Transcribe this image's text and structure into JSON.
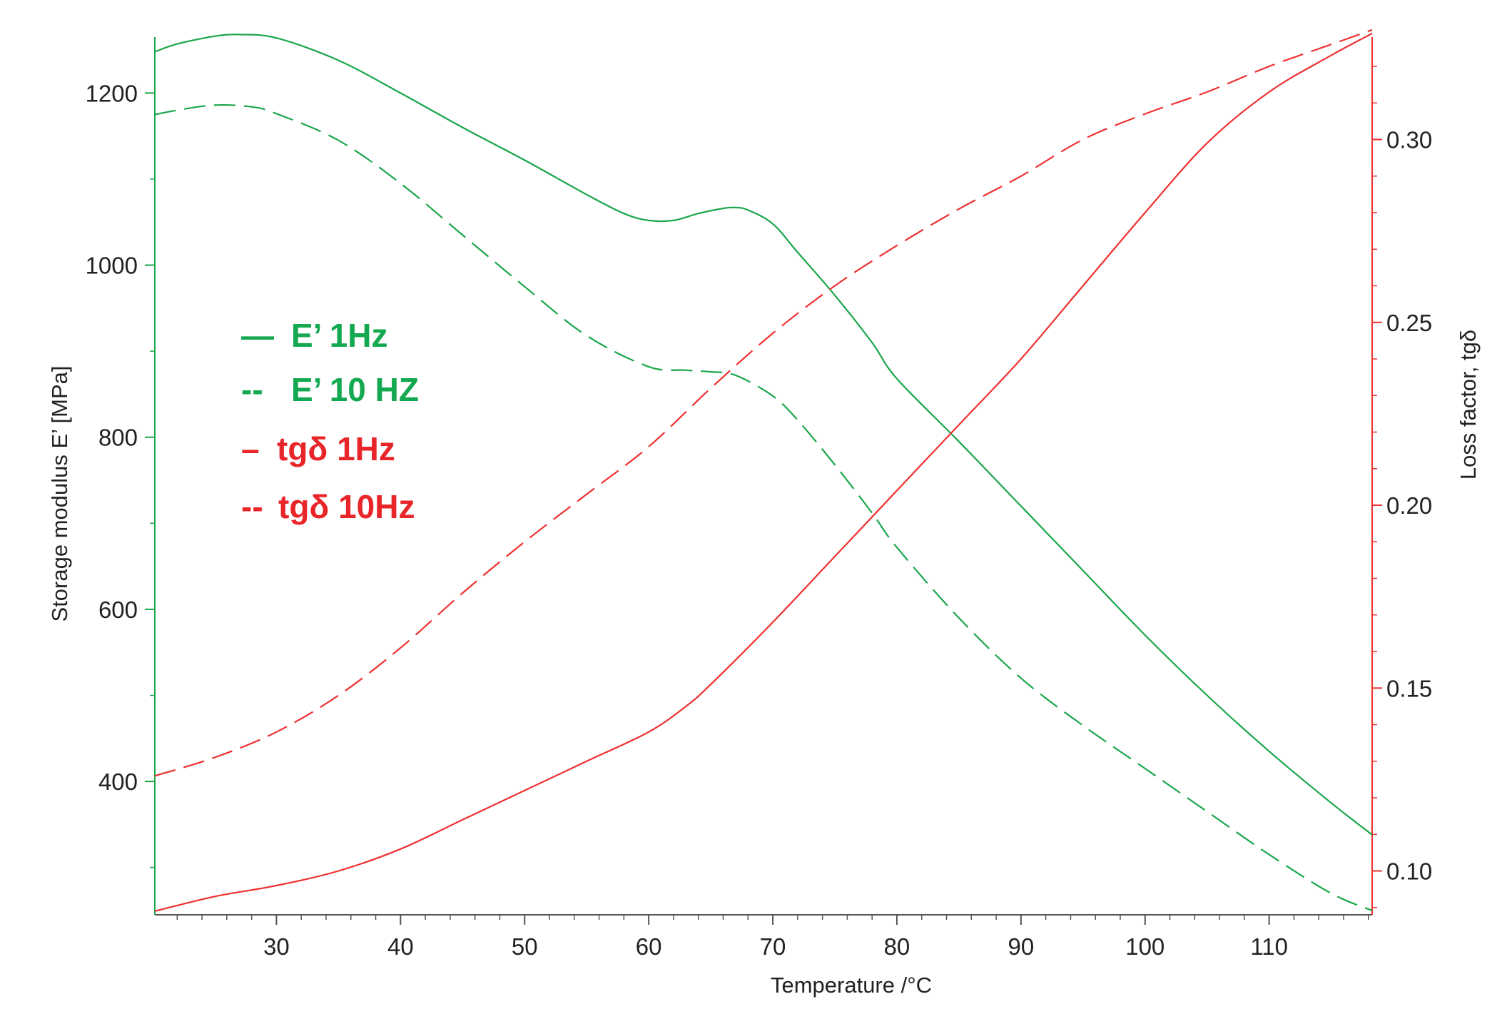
{
  "chart_data": {
    "type": "line",
    "title": "",
    "xlabel": "Temperature /°C",
    "ylabel": "Storage modulus E’   [MPa]",
    "y2label": "Loss factor, tgδ",
    "xlim": [
      20.2,
      118.3
    ],
    "ylim": [
      245,
      1265
    ],
    "y2lim": [
      0.088,
      0.328
    ],
    "x_ticks": [
      30,
      40,
      50,
      60,
      70,
      80,
      90,
      100,
      110
    ],
    "y_ticks": [
      400,
      600,
      800,
      1000,
      1200
    ],
    "y2_ticks": [
      0.1,
      0.15,
      0.2,
      0.25,
      0.3
    ],
    "y2_tick_labels": [
      "0.10",
      "0.15",
      "0.20",
      "0.25",
      "0.30"
    ],
    "legend_placement": "left-middle",
    "colors": {
      "storage": "#1aa64a",
      "loss": "#ee3030",
      "legend_green": "#14a850",
      "legend_red": "#e8262a"
    },
    "series": [
      {
        "name": "E’ 1Hz",
        "legend_label": "E’ 1Hz",
        "legend_marker": "—",
        "axis": "left",
        "color": "storage",
        "dash": "solid",
        "x": [
          20.2,
          22,
          25,
          27,
          30,
          35,
          40,
          45,
          50,
          55,
          58,
          60,
          62,
          64,
          66,
          67,
          68,
          70,
          72,
          75,
          78,
          80,
          85,
          90,
          95,
          100,
          105,
          110,
          115,
          118.3
        ],
        "y": [
          1248,
          1257,
          1266,
          1268,
          1264,
          1238,
          1200,
          1160,
          1122,
          1082,
          1060,
          1052,
          1052,
          1060,
          1066,
          1067,
          1064,
          1048,
          1015,
          965,
          910,
          868,
          795,
          720,
          645,
          570,
          500,
          435,
          375,
          338
        ]
      },
      {
        "name": "E’ 10 HZ",
        "legend_label": "E’ 10 HZ",
        "legend_marker": "--",
        "axis": "left",
        "color": "storage",
        "dash": "dashed",
        "x": [
          20.2,
          22,
          25,
          28,
          30,
          35,
          40,
          45,
          50,
          55,
          60,
          63,
          65,
          67,
          70,
          72,
          75,
          78,
          80,
          85,
          90,
          95,
          100,
          105,
          110,
          115,
          118.3
        ],
        "y": [
          1175,
          1180,
          1186,
          1184,
          1176,
          1145,
          1095,
          1035,
          975,
          918,
          882,
          878,
          876,
          872,
          848,
          820,
          768,
          712,
          672,
          590,
          520,
          465,
          415,
          365,
          315,
          270,
          250
        ]
      },
      {
        "name": "tgδ 1Hz",
        "legend_label": "tgδ 1Hz",
        "legend_marker": "–",
        "axis": "right",
        "color": "loss",
        "dash": "solid",
        "x": [
          20.2,
          25,
          30,
          35,
          40,
          45,
          50,
          55,
          60,
          63,
          65,
          70,
          75,
          80,
          85,
          90,
          95,
          100,
          105,
          110,
          115,
          118.3
        ],
        "y": [
          0.089,
          0.093,
          0.096,
          0.1,
          0.106,
          0.114,
          0.122,
          0.13,
          0.138,
          0.145,
          0.151,
          0.168,
          0.186,
          0.204,
          0.222,
          0.24,
          0.26,
          0.28,
          0.299,
          0.313,
          0.323,
          0.329
        ]
      },
      {
        "name": "tgδ 10Hz",
        "legend_label": "tgδ 10Hz",
        "legend_marker": "--",
        "axis": "right",
        "color": "loss",
        "dash": "dashed",
        "x": [
          20.2,
          25,
          30,
          35,
          40,
          45,
          50,
          55,
          60,
          65,
          70,
          75,
          80,
          85,
          90,
          95,
          100,
          105,
          110,
          115,
          118.3
        ],
        "y": [
          0.126,
          0.131,
          0.138,
          0.148,
          0.161,
          0.176,
          0.19,
          0.203,
          0.216,
          0.232,
          0.247,
          0.26,
          0.271,
          0.281,
          0.29,
          0.3,
          0.307,
          0.313,
          0.32,
          0.326,
          0.33
        ]
      }
    ]
  }
}
